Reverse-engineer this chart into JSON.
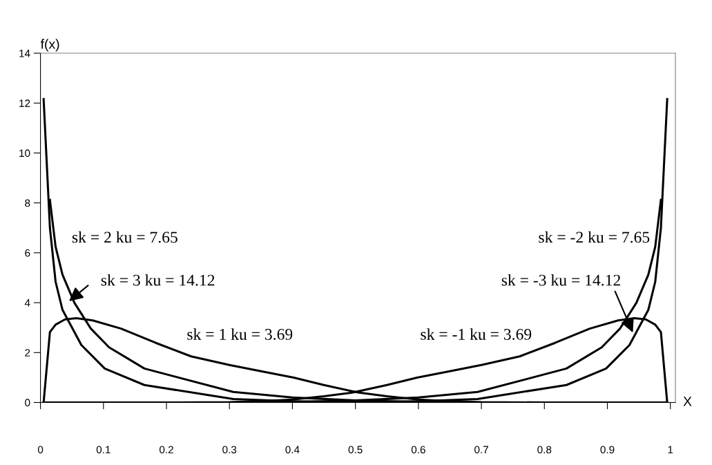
{
  "chart_data": {
    "type": "line",
    "xlabel": "X",
    "ylabel": "f(x)",
    "xlim": [
      0,
      1.008
    ],
    "ylim": [
      0,
      14
    ],
    "xticks": [
      0,
      0.1,
      0.2,
      0.3,
      0.4,
      0.5,
      0.6,
      0.7,
      0.8,
      0.9,
      1
    ],
    "yticks": [
      0,
      2,
      4,
      6,
      8,
      10,
      12,
      14
    ],
    "grid": false,
    "legend": false,
    "marker": "none",
    "line_style": "solid",
    "series": [
      {
        "color": "#000000",
        "x": [
          0.005,
          0.015,
          0.024,
          0.039,
          0.057,
          0.083,
          0.128,
          0.183,
          0.239,
          0.3,
          0.35,
          0.402,
          0.45,
          0.504,
          0.55,
          0.6,
          0.65,
          0.7,
          0.8
        ],
        "values": [
          0,
          2.82,
          3.12,
          3.33,
          3.38,
          3.29,
          2.96,
          2.39,
          1.85,
          1.5,
          1.25,
          1.0,
          0.7,
          0.4,
          0.25,
          0.12,
          0.05,
          0.01,
          0
        ]
      },
      {
        "color": "#000000",
        "x": [
          0.015,
          0.024,
          0.035,
          0.054,
          0.08,
          0.109,
          0.165,
          0.306,
          0.4,
          0.5,
          0.6,
          0.7,
          0.8,
          0.9,
          0.995
        ],
        "values": [
          8.12,
          6.24,
          5.12,
          3.99,
          2.96,
          2.21,
          1.36,
          0.42,
          0.2,
          0.08,
          0.02,
          0,
          0,
          0,
          0
        ]
      },
      {
        "color": "#000000",
        "x": [
          0.005,
          0.015,
          0.024,
          0.035,
          0.065,
          0.102,
          0.165,
          0.306,
          0.4,
          0.5,
          0.6,
          0.7,
          0.8,
          0.9,
          0.995
        ],
        "values": [
          12.16,
          7.0,
          4.84,
          3.71,
          2.3,
          1.36,
          0.7,
          0.14,
          0.05,
          0.01,
          0,
          0,
          0,
          0,
          0
        ]
      },
      {
        "color": "#000000",
        "x": [
          0.995,
          0.985,
          0.976,
          0.961,
          0.943,
          0.917,
          0.872,
          0.817,
          0.761,
          0.7,
          0.65,
          0.598,
          0.55,
          0.496,
          0.45,
          0.4,
          0.35,
          0.3,
          0.2
        ],
        "values": [
          0,
          2.82,
          3.12,
          3.33,
          3.38,
          3.29,
          2.96,
          2.39,
          1.85,
          1.5,
          1.25,
          1.0,
          0.7,
          0.4,
          0.25,
          0.12,
          0.05,
          0.01,
          0
        ]
      },
      {
        "color": "#000000",
        "x": [
          0.985,
          0.976,
          0.965,
          0.946,
          0.92,
          0.891,
          0.835,
          0.694,
          0.6,
          0.5,
          0.4,
          0.3,
          0.2,
          0.1,
          0.005
        ],
        "values": [
          8.12,
          6.24,
          5.12,
          3.99,
          2.96,
          2.21,
          1.36,
          0.42,
          0.2,
          0.08,
          0.02,
          0,
          0,
          0,
          0
        ]
      },
      {
        "color": "#000000",
        "x": [
          0.995,
          0.985,
          0.976,
          0.965,
          0.935,
          0.898,
          0.835,
          0.694,
          0.6,
          0.5,
          0.4,
          0.3,
          0.2,
          0.1,
          0.005
        ],
        "values": [
          12.16,
          7.0,
          4.84,
          3.71,
          2.3,
          1.36,
          0.7,
          0.14,
          0.05,
          0.01,
          0,
          0,
          0,
          0,
          0
        ]
      }
    ],
    "annotations": [
      "sk = 2 ku = 7.65",
      "sk = 3 ku = 14.12",
      "sk = 1 ku = 3.69",
      "sk = -1 ku = 3.69",
      "sk = -2 ku = 7.65",
      "sk = -3 ku = 14.12"
    ]
  }
}
